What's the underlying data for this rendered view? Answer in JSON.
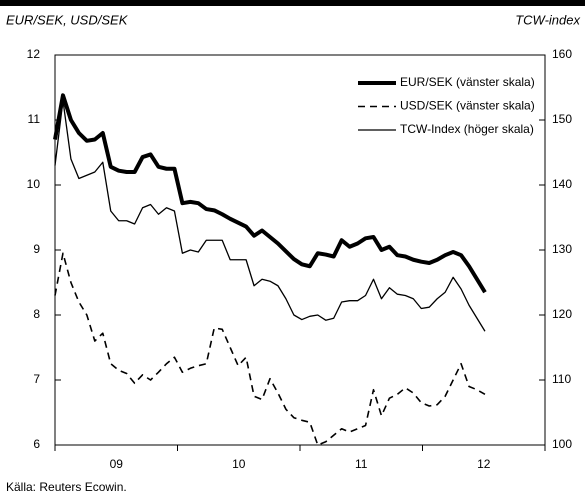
{
  "chart_data": {
    "type": "line",
    "y_axis_label": "EUR/SEK, USD/SEK",
    "y2_axis_label": "TCW-index",
    "source": "Källa: Reuters Ecowin.",
    "x": [
      2009,
      2009.065,
      2009.13,
      2009.195,
      2009.26,
      2009.325,
      2009.39,
      2009.455,
      2009.52,
      2009.585,
      2009.65,
      2009.715,
      2009.78,
      2009.845,
      2009.91,
      2009.975,
      2010.04,
      2010.105,
      2010.17,
      2010.235,
      2010.3,
      2010.365,
      2010.43,
      2010.495,
      2010.56,
      2010.625,
      2010.69,
      2010.755,
      2010.82,
      2010.885,
      2010.95,
      2011.015,
      2011.08,
      2011.145,
      2011.21,
      2011.275,
      2011.34,
      2011.405,
      2011.47,
      2011.535,
      2011.6,
      2011.665,
      2011.73,
      2011.795,
      2011.86,
      2011.925,
      2011.99,
      2012.055,
      2012.12,
      2012.185,
      2012.25,
      2012.315,
      2012.38,
      2012.445,
      2012.51
    ],
    "xlim": [
      2009,
      2013
    ],
    "xticks": [
      2009,
      2010,
      2011,
      2012,
      2013
    ],
    "xlabels": [
      {
        "value": 2009.5,
        "label": "09"
      },
      {
        "value": 2010.5,
        "label": "10"
      },
      {
        "value": 2011.5,
        "label": "11"
      },
      {
        "value": 2012.5,
        "label": "12"
      }
    ],
    "ylim": [
      6,
      12
    ],
    "yticks": [
      6,
      7,
      8,
      9,
      10,
      11,
      12
    ],
    "y2lim": [
      100,
      160
    ],
    "y2ticks": [
      100,
      110,
      120,
      130,
      140,
      150,
      160
    ],
    "legend": "upper right",
    "series": [
      {
        "name": "EUR/SEK (vänster skala)",
        "color": "#000000",
        "line_width": 4,
        "dash": "solid",
        "axis": "y",
        "values": [
          10.7,
          11.38,
          11.0,
          10.8,
          10.68,
          10.7,
          10.8,
          10.28,
          10.22,
          10.2,
          10.2,
          10.43,
          10.47,
          10.28,
          10.25,
          10.25,
          9.72,
          9.74,
          9.72,
          9.63,
          9.61,
          9.55,
          9.48,
          9.42,
          9.36,
          9.22,
          9.3,
          9.2,
          9.1,
          8.98,
          8.86,
          8.78,
          8.75,
          8.95,
          8.93,
          8.9,
          9.15,
          9.05,
          9.1,
          9.18,
          9.2,
          9.0,
          9.05,
          8.92,
          8.9,
          8.85,
          8.82,
          8.8,
          8.85,
          8.92,
          8.97,
          8.92,
          8.75,
          8.55,
          8.35
        ]
      },
      {
        "name": "USD/SEK (vänster skala)",
        "color": "#000000",
        "line_width": 1.6,
        "dash": "dashed",
        "axis": "y",
        "values": [
          8.3,
          8.95,
          8.5,
          8.2,
          8.0,
          7.6,
          7.72,
          7.25,
          7.15,
          7.1,
          6.95,
          7.08,
          7.0,
          7.12,
          7.25,
          7.35,
          7.12,
          7.18,
          7.22,
          7.25,
          7.8,
          7.78,
          7.5,
          7.22,
          7.35,
          6.75,
          6.7,
          7.02,
          6.8,
          6.55,
          6.42,
          6.38,
          6.35,
          6.0,
          6.05,
          6.15,
          6.25,
          6.2,
          6.25,
          6.3,
          6.85,
          6.45,
          6.72,
          6.78,
          6.88,
          6.8,
          6.65,
          6.6,
          6.62,
          6.75,
          7.0,
          7.25,
          6.9,
          6.85,
          6.78
        ]
      },
      {
        "name": "TCW-Index (höger skala)",
        "color": "#000000",
        "line_width": 1.3,
        "dash": "solid",
        "axis": "y2",
        "values": [
          143,
          153,
          144,
          141,
          141.5,
          142,
          143.5,
          136,
          134.5,
          134.5,
          134,
          136.5,
          137,
          135.5,
          136.5,
          136,
          129.5,
          130,
          129.7,
          131.5,
          131.5,
          131.5,
          128.5,
          128.5,
          128.5,
          124.5,
          125.5,
          125.2,
          124.5,
          122.5,
          120,
          119.3,
          119.8,
          120,
          119.2,
          119.5,
          122,
          122.2,
          122.2,
          123,
          125.5,
          122.5,
          124.2,
          123.2,
          123,
          122.5,
          121,
          121.2,
          122.5,
          123.5,
          125.8,
          124,
          121.5,
          119.5,
          117.5
        ]
      }
    ]
  }
}
